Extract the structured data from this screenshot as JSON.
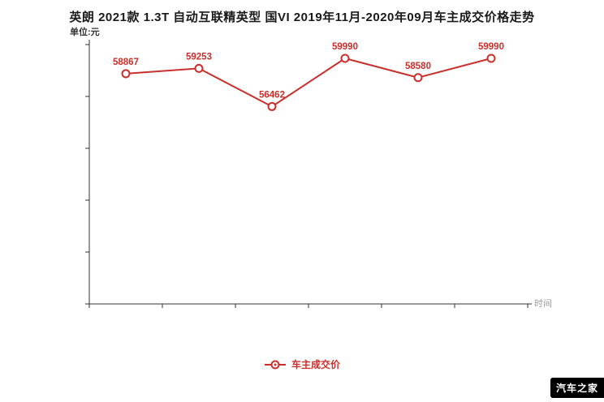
{
  "page": {
    "title": "英朗 2021款 1.3T 自动互联精英型 国VI 2019年11月-2020年09月车主成交价格走势",
    "unit_label": "单位:元",
    "xaxis_label": "时间",
    "watermark": "汽车之家"
  },
  "legend": {
    "series_label": "车主成交价"
  },
  "colors": {
    "series": "#c9302c",
    "axis": "#333333",
    "axis_label": "#999999",
    "point_fill": "#ffffff"
  },
  "chart_data": {
    "type": "line",
    "title": "英朗 2021款 1.3T 自动互联精英型 国VI 2019年11月-2020年09月车主成交价格走势",
    "xlabel": "时间",
    "ylabel": "单位:元",
    "ylim": [
      42000,
      61000
    ],
    "grid": false,
    "legend_position": "bottom",
    "series": [
      {
        "name": "车主成交价",
        "values": [
          58867,
          59253,
          56462,
          59990,
          58580,
          59990
        ],
        "point_labels": [
          "58867",
          "59253",
          "56462",
          "59990",
          "58580",
          "59990"
        ]
      }
    ]
  }
}
